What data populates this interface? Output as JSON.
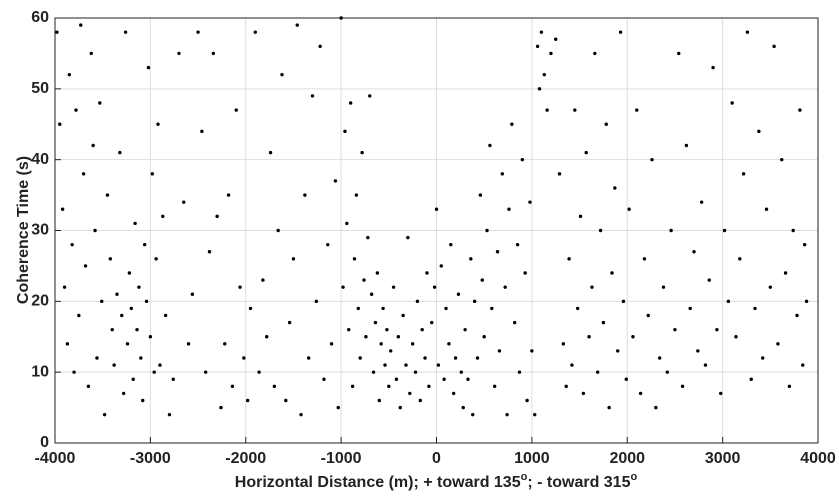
{
  "chart_data": {
    "type": "scatter",
    "xlabel": [
      "Horizontal Distance (m); + toward 135",
      "o",
      "; - toward 315",
      "o"
    ],
    "ylabel": "Coherence Time (s)",
    "color": "#000000",
    "grid": true,
    "xlim": [
      -4000,
      4000
    ],
    "ylim": [
      0,
      60
    ],
    "xticks": [
      -4000,
      -3000,
      -2000,
      -1000,
      0,
      1000,
      2000,
      3000,
      4000
    ],
    "yticks": [
      0,
      10,
      20,
      30,
      40,
      50,
      60
    ],
    "x": [
      -3980,
      -3950,
      -3920,
      -3900,
      -3870,
      -3850,
      -3820,
      -3800,
      -3780,
      -3750,
      -3730,
      -3700,
      -3680,
      -3650,
      -3620,
      -3600,
      -3580,
      -3560,
      -3530,
      -3510,
      -3480,
      -3450,
      -3420,
      -3400,
      -3380,
      -3350,
      -3320,
      -3300,
      -3280,
      -3260,
      -3240,
      -3220,
      -3200,
      -3180,
      -3160,
      -3140,
      -3120,
      -3100,
      -3080,
      -3060,
      -3040,
      -3020,
      -3000,
      -2980,
      -2960,
      -2940,
      -2920,
      -2900,
      -2870,
      -2840,
      -2800,
      -2760,
      -2700,
      -2650,
      -2600,
      -2560,
      -2500,
      -2460,
      -2420,
      -2380,
      -2340,
      -2300,
      -2260,
      -2220,
      -2180,
      -2140,
      -2100,
      -2060,
      -2020,
      -1980,
      -1950,
      -1900,
      -1860,
      -1820,
      -1780,
      -1740,
      -1700,
      -1660,
      -1620,
      -1580,
      -1540,
      -1500,
      -1460,
      -1420,
      -1380,
      -1340,
      -1300,
      -1260,
      -1220,
      -1180,
      -1140,
      -1100,
      -1060,
      -1030,
      -1000,
      -980,
      -960,
      -940,
      -920,
      -900,
      -880,
      -860,
      -840,
      -820,
      -800,
      -780,
      -760,
      -740,
      -720,
      -700,
      -680,
      -660,
      -640,
      -620,
      -600,
      -580,
      -560,
      -540,
      -520,
      -500,
      -480,
      -450,
      -420,
      -400,
      -380,
      -350,
      -320,
      -300,
      -280,
      -250,
      -220,
      -200,
      -170,
      -150,
      -120,
      -100,
      -80,
      -50,
      -20,
      0,
      20,
      50,
      80,
      100,
      130,
      150,
      180,
      200,
      230,
      260,
      280,
      300,
      330,
      360,
      380,
      400,
      430,
      460,
      480,
      500,
      530,
      560,
      580,
      610,
      640,
      660,
      690,
      720,
      740,
      760,
      790,
      820,
      850,
      870,
      900,
      930,
      950,
      980,
      1000,
      1030,
      1060,
      1080,
      1100,
      1130,
      1160,
      1200,
      1250,
      1290,
      1330,
      1360,
      1390,
      1420,
      1450,
      1480,
      1510,
      1540,
      1570,
      1600,
      1630,
      1660,
      1690,
      1720,
      1750,
      1780,
      1810,
      1840,
      1870,
      1900,
      1930,
      1960,
      1990,
      2020,
      2060,
      2100,
      2140,
      2180,
      2220,
      2260,
      2300,
      2340,
      2380,
      2420,
      2460,
      2500,
      2540,
      2580,
      2620,
      2660,
      2700,
      2740,
      2780,
      2820,
      2860,
      2900,
      2940,
      2980,
      3020,
      3060,
      3100,
      3140,
      3180,
      3220,
      3260,
      3300,
      3340,
      3380,
      3420,
      3460,
      3500,
      3540,
      3580,
      3620,
      3660,
      3700,
      3740,
      3780,
      3810,
      3840,
      3860,
      3880
    ],
    "values": [
      58,
      45,
      33,
      22,
      14,
      52,
      28,
      10,
      47,
      18,
      59,
      38,
      25,
      8,
      55,
      42,
      30,
      12,
      48,
      20,
      4,
      35,
      26,
      16,
      11,
      21,
      41,
      18,
      7,
      58,
      14,
      24,
      19,
      9,
      31,
      16,
      22,
      12,
      6,
      28,
      20,
      53,
      15,
      38,
      10,
      26,
      45,
      11,
      32,
      18,
      4,
      9,
      55,
      34,
      14,
      21,
      58,
      44,
      10,
      27,
      55,
      32,
      5,
      14,
      35,
      8,
      47,
      22,
      12,
      6,
      19,
      58,
      10,
      23,
      15,
      41,
      8,
      30,
      52,
      6,
      17,
      26,
      59,
      4,
      35,
      12,
      49,
      20,
      56,
      9,
      28,
      14,
      37,
      5,
      60,
      22,
      44,
      31,
      16,
      48,
      8,
      26,
      35,
      19,
      12,
      41,
      23,
      15,
      29,
      49,
      21,
      10,
      17,
      24,
      6,
      14,
      19,
      11,
      16,
      8,
      13,
      22,
      9,
      15,
      5,
      18,
      11,
      29,
      7,
      14,
      10,
      20,
      6,
      16,
      12,
      24,
      8,
      17,
      22,
      33,
      11,
      25,
      9,
      19,
      14,
      28,
      7,
      12,
      21,
      10,
      5,
      16,
      9,
      26,
      4,
      20,
      12,
      35,
      23,
      15,
      30,
      42,
      19,
      8,
      27,
      13,
      38,
      22,
      4,
      33,
      45,
      17,
      28,
      10,
      40,
      24,
      6,
      34,
      13,
      4,
      56,
      50,
      58,
      52,
      47,
      55,
      57,
      38,
      14,
      8,
      26,
      11,
      47,
      19,
      32,
      7,
      41,
      15,
      22,
      55,
      10,
      30,
      17,
      45,
      5,
      24,
      36,
      13,
      58,
      20,
      9,
      33,
      15,
      47,
      7,
      26,
      18,
      40,
      5,
      12,
      22,
      10,
      30,
      16,
      55,
      8,
      42,
      19,
      27,
      13,
      34,
      11,
      23,
      53,
      16,
      7,
      30,
      20,
      48,
      15,
      26,
      38,
      58,
      9,
      19,
      44,
      12,
      33,
      22,
      56,
      14,
      40,
      24,
      8,
      30,
      18,
      47,
      11,
      28,
      20
    ]
  }
}
